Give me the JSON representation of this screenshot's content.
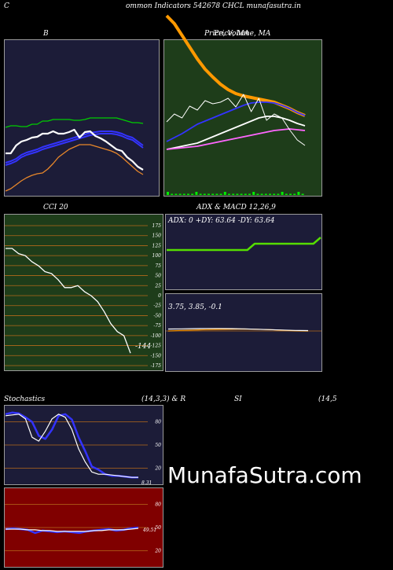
{
  "header": {
    "title": "ommon  Indicators 542678  CHCL  munafasutra.in",
    "left_mark": "C"
  },
  "watermark": "MunafaSutra.com",
  "colors": {
    "navy": "#1c1c38",
    "green": "#1e3d1a",
    "red": "#800000",
    "grid_orange": "#b56a1a"
  },
  "chart_data": [
    {
      "id": "bollinger",
      "type": "line",
      "title": "B",
      "series": [
        {
          "role": "upper",
          "color": "#00cc00",
          "values": [
            122,
            120,
            120,
            121,
            121,
            118,
            118,
            114,
            114,
            112,
            112,
            112,
            112,
            113,
            113,
            112,
            110,
            110,
            110,
            110,
            110,
            110,
            112,
            114,
            116,
            116,
            117
          ]
        },
        {
          "role": "middle",
          "color": "#3333ff",
          "values": [
            170,
            168,
            165,
            160,
            157,
            155,
            153,
            150,
            148,
            146,
            144,
            142,
            140,
            138,
            136,
            134,
            132,
            131,
            130,
            130,
            130,
            131,
            133,
            136,
            138,
            143,
            148
          ]
        },
        {
          "role": "lower",
          "color": "#e8872a",
          "values": [
            203,
            200,
            195,
            190,
            186,
            183,
            181,
            180,
            175,
            168,
            160,
            155,
            150,
            147,
            144,
            144,
            144,
            146,
            148,
            150,
            152,
            155,
            160,
            166,
            172,
            178,
            182
          ]
        },
        {
          "role": "price",
          "color": "#ffffff",
          "values": [
            155,
            155,
            145,
            140,
            138,
            135,
            134,
            130,
            130,
            127,
            130,
            130,
            128,
            125,
            135,
            128,
            127,
            133,
            136,
            140,
            145,
            150,
            152,
            160,
            165,
            172,
            176
          ]
        }
      ]
    },
    {
      "id": "price_ma",
      "type": "line",
      "title": "Price,  Volume,  MA",
      "overlay_title": "Price,  MA",
      "series": [
        {
          "role": "ma_orange",
          "color": "#ff9900",
          "values": [
            20,
            30,
            45,
            60,
            75,
            88,
            98,
            107,
            114,
            119,
            122,
            124,
            126,
            128,
            130,
            134,
            138,
            143,
            147
          ]
        },
        {
          "role": "ma_blue",
          "color": "#3333ff",
          "values": [
            180,
            175,
            170,
            164,
            158,
            154,
            150,
            146,
            142,
            138,
            134,
            131,
            130,
            130,
            131,
            134,
            138,
            143,
            147
          ]
        },
        {
          "role": "ma_white",
          "color": "#ffffff",
          "values": [
            190,
            188,
            186,
            184,
            182,
            178,
            174,
            170,
            166,
            162,
            158,
            154,
            150,
            148,
            148,
            150,
            153,
            157,
            160
          ]
        },
        {
          "role": "ma_pink",
          "color": "#ff66ff",
          "values": [
            190,
            189,
            188,
            187,
            186,
            184,
            182,
            180,
            178,
            176,
            174,
            172,
            170,
            168,
            166,
            165,
            164,
            165,
            166
          ]
        },
        {
          "role": "price",
          "color": "#ffffff",
          "values": [
            155,
            145,
            150,
            135,
            140,
            128,
            132,
            130,
            125,
            136,
            120,
            142,
            125,
            153,
            145,
            150,
            165,
            178,
            185
          ]
        }
      ]
    },
    {
      "id": "cci",
      "type": "line",
      "title": "CCI 20",
      "yticks": [
        175,
        150,
        125,
        100,
        75,
        50,
        25,
        0,
        -25,
        -50,
        -75,
        -100,
        -125,
        -150,
        -175
      ],
      "ylim": [
        -175,
        175
      ],
      "last_value_label": "-144",
      "values": [
        118,
        118,
        105,
        100,
        85,
        75,
        60,
        55,
        40,
        20,
        20,
        25,
        10,
        0,
        -15,
        -40,
        -70,
        -90,
        -100,
        -144
      ]
    },
    {
      "id": "adx",
      "type": "line",
      "title": "ADX  & MACD 12,26,9",
      "readout": "ADX: 0   +DY: 63.64   -DY: 63.64",
      "values": [
        0.1,
        0.1,
        0.1,
        0.1,
        0.1,
        0.1,
        0.1,
        0.1,
        0.1,
        0.1,
        0.1,
        0.1,
        0.11,
        0.11,
        0.11,
        0.11,
        0.11,
        0.11,
        0.11,
        0.11,
        0.11,
        0.12
      ]
    },
    {
      "id": "macd",
      "type": "line",
      "readout": "3.75,   3.85,   -0.1",
      "series": [
        {
          "role": "macd",
          "color": "#ff9900",
          "values": [
            3.75,
            3.78,
            3.8,
            3.82,
            3.83,
            3.84,
            3.85,
            3.84,
            3.82,
            3.79,
            3.76,
            3.75
          ]
        },
        {
          "role": "signal",
          "color": "#ffffff",
          "values": [
            3.85,
            3.86,
            3.87,
            3.88,
            3.88,
            3.87,
            3.86,
            3.84,
            3.82,
            3.8,
            3.78,
            3.77
          ]
        }
      ]
    },
    {
      "id": "stochastics",
      "type": "line",
      "title": "Stochastics",
      "params": "(14,3,3) & R",
      "yticks": [
        80,
        50,
        20
      ],
      "last_value_label": "8.31",
      "series": [
        {
          "role": "k",
          "color": "#3333ff",
          "values": [
            90,
            92,
            91,
            86,
            80,
            62,
            58,
            70,
            88,
            90,
            83,
            60,
            42,
            22,
            18,
            12,
            10,
            10,
            9,
            8,
            8
          ]
        },
        {
          "role": "d",
          "color": "#ffffff",
          "values": [
            88,
            89,
            90,
            84,
            60,
            55,
            68,
            84,
            90,
            86,
            70,
            45,
            28,
            15,
            12,
            12,
            11,
            10,
            9,
            8,
            8
          ]
        }
      ]
    },
    {
      "id": "rsi",
      "type": "line",
      "title": "SI",
      "params": "(14,5",
      "yticks": [
        80,
        50,
        20
      ],
      "last_value_label": "49.51",
      "series": [
        {
          "role": "rsi",
          "color": "#3333ff",
          "values": [
            48,
            49,
            48,
            47,
            43,
            46,
            45,
            44,
            45,
            44,
            43,
            45,
            46,
            47,
            48,
            46,
            47,
            49,
            50
          ]
        },
        {
          "role": "signal",
          "color": "#ffffff",
          "values": [
            48,
            48,
            48,
            47,
            47,
            46,
            46,
            45,
            45,
            45,
            45,
            45,
            46,
            46,
            47,
            47,
            47,
            48,
            49
          ]
        }
      ]
    }
  ]
}
